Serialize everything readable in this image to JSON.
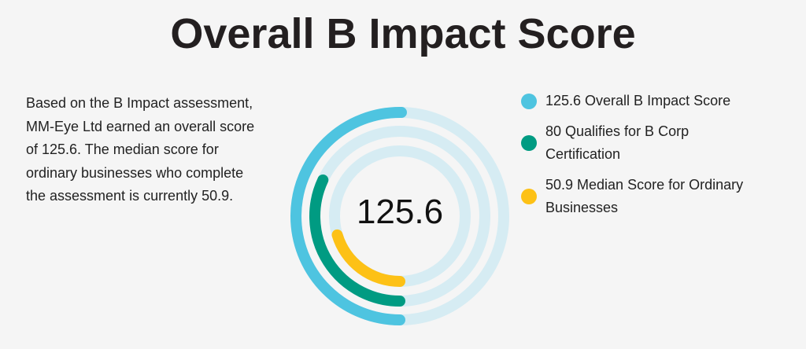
{
  "header": {
    "title": "Overall B Impact Score"
  },
  "description": "Based on the B Impact assessment, MM-Eye Ltd earned an overall score of 125.6. The median score for ordinary businesses who complete the assessment is currently 50.9.",
  "center_value": "125.6",
  "legend": [
    {
      "label": "125.6 Overall B Impact Score",
      "color": "#4ec4e0"
    },
    {
      "label": "80 Qualifies for B Corp Certification",
      "color": "#009b82"
    },
    {
      "label": "50.9 Median Score for Ordinary Businesses",
      "color": "#fdc116"
    }
  ],
  "colors": {
    "track": "#d6ecf3",
    "background": "#f5f5f5"
  },
  "chart_data": {
    "type": "radial-bar",
    "title": "Overall B Impact Score",
    "center_label": "125.6",
    "max": 250,
    "series": [
      {
        "name": "Overall B Impact Score",
        "value": 125.6,
        "color": "#4ec4e0"
      },
      {
        "name": "Qualifies for B Corp Certification",
        "value": 80,
        "color": "#009b82"
      },
      {
        "name": "Median Score for Ordinary Businesses",
        "value": 50.9,
        "color": "#fdc116"
      }
    ],
    "legend_position": "right"
  }
}
